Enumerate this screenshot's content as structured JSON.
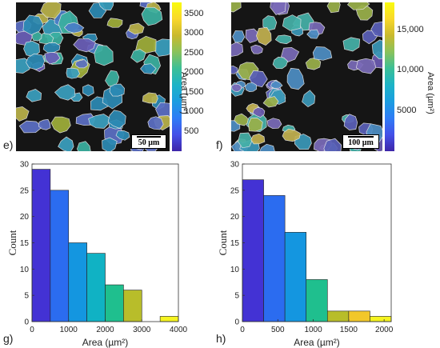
{
  "panels": {
    "e": {
      "letter": "e)",
      "scalebar": "50 µm",
      "colorbar_label": "Area (µm²)",
      "colorbar_ticks": [
        "3500",
        "3000",
        "2500",
        "2000",
        "1500",
        "1000",
        "500"
      ],
      "colorbar_min": 0,
      "colorbar_max": 3800
    },
    "f": {
      "letter": "f)",
      "scalebar": "100 µm",
      "colorbar_label": "Area (µm²)",
      "colorbar_ticks": [
        "15,000",
        "10,000",
        "5000"
      ],
      "colorbar_min": 0,
      "colorbar_max": 18500
    },
    "g": {
      "letter": "g)"
    },
    "h": {
      "letter": "h)"
    }
  },
  "colors": {
    "parula": [
      "#3e26a8",
      "#4450e8",
      "#2f7cf6",
      "#1b9de0",
      "#1cb3c7",
      "#3bbf97",
      "#89c25c",
      "#c9b92e",
      "#f9d82b",
      "#f9fb0e"
    ]
  },
  "chart_data": [
    {
      "type": "bar",
      "panel": "g",
      "bin_edges": [
        0,
        500,
        1000,
        1500,
        2000,
        2500,
        3000,
        3500,
        4000
      ],
      "values": [
        29,
        25,
        15,
        13,
        7,
        6,
        0,
        1
      ],
      "bar_colors": [
        "#4332d4",
        "#2b6cf0",
        "#1496e0",
        "#10b2c4",
        "#1fbf8e",
        "#b8bd2a",
        "#d9d12a",
        "#f6f420"
      ],
      "xlabel": "Area (µm²)",
      "ylabel": "Count",
      "xticks": [
        0,
        1000,
        2000,
        3000,
        4000
      ],
      "yticks": [
        0,
        5,
        10,
        15,
        20,
        25,
        30
      ],
      "xlim": [
        0,
        4000
      ],
      "ylim": [
        0,
        30
      ]
    },
    {
      "type": "bar",
      "panel": "h",
      "bin_edges": [
        0,
        300,
        600,
        900,
        1200,
        1500,
        1800,
        2100
      ],
      "values": [
        27,
        24,
        17,
        8,
        2,
        2,
        1
      ],
      "bar_colors": [
        "#4332d4",
        "#2b6cf0",
        "#1496e0",
        "#1fbf8e",
        "#b8bd2a",
        "#f2c72a",
        "#f6f420"
      ],
      "xlabel": "Area (µm²)",
      "ylabel": "Count",
      "xticks": [
        0,
        500,
        1000,
        1500,
        2000
      ],
      "yticks": [
        0,
        5,
        10,
        15,
        20,
        25,
        30
      ],
      "xlim": [
        0,
        2100
      ],
      "ylim": [
        0,
        30
      ]
    }
  ]
}
